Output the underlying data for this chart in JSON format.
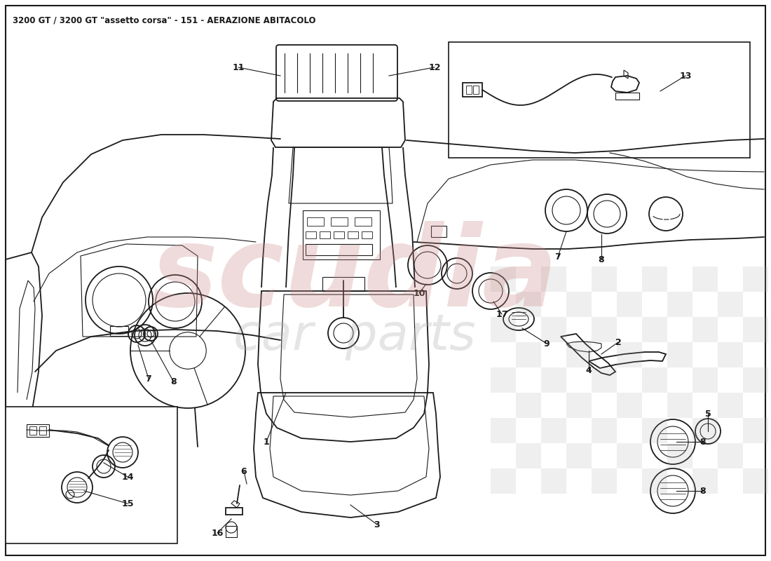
{
  "title": "3200 GT / 3200 GT \"assetto corsa\" - 151 - AERAZIONE ABITACOLO",
  "title_fontsize": 8.5,
  "title_fontweight": "bold",
  "bg_color": "#ffffff",
  "line_color": "#1a1a1a",
  "watermark_red": "#d4908080",
  "watermark_gray": "#b0b0b0",
  "fig_width": 11.0,
  "fig_height": 8.0,
  "dpi": 100,
  "watermark_text_red": "scudia",
  "watermark_text_gray": "car  parts",
  "checker_alpha": 0.18,
  "border_lw": 1.2
}
